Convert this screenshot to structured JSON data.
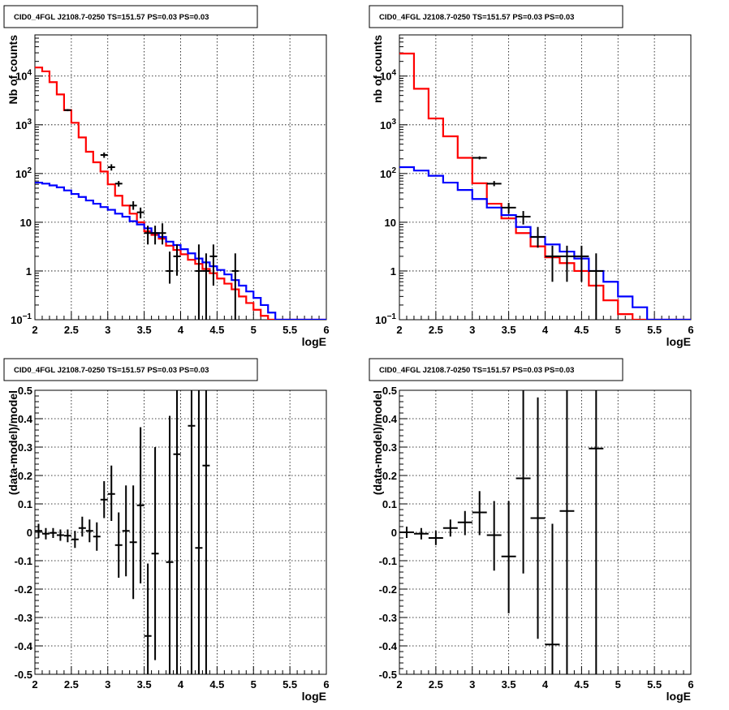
{
  "chart_data": [
    {
      "type": "line",
      "subtype": "histogram",
      "title": "CID0_4FGL J2108.7-0250 TS=151.57 PS=0.03 PS=0.03",
      "xlabel": "logE",
      "ylabel": "Nb of counts",
      "xlim": [
        2,
        6
      ],
      "ylim": [
        0.1,
        70000
      ],
      "yscale": "log",
      "grid": true,
      "xticks": [
        "2",
        "2.5",
        "3",
        "3.5",
        "4",
        "4.5",
        "5",
        "5.5",
        "6"
      ],
      "yticks": [
        "10^-1",
        "1",
        "10",
        "10^2",
        "10^3",
        "10^4"
      ],
      "bin_width": 0.1,
      "series": [
        {
          "color": "#ff0000",
          "step_edges": [
            2.0,
            2.1,
            2.2,
            2.3,
            2.4,
            2.5,
            2.6,
            2.7,
            2.8,
            2.9,
            3.0,
            3.1,
            3.2,
            3.3,
            3.4,
            3.5,
            3.6,
            3.7,
            3.8,
            3.9,
            4.0,
            4.1,
            4.2,
            4.3,
            4.4,
            4.5,
            4.6,
            4.7,
            4.8,
            4.9,
            5.0,
            5.1,
            5.2,
            5.3,
            5.4,
            5.5,
            5.6,
            5.7,
            5.8,
            5.9,
            6.0
          ],
          "values": [
            15000,
            12500,
            7500,
            4200,
            2000,
            1100,
            550,
            280,
            170,
            110,
            60,
            35,
            22,
            15,
            10,
            6.5,
            5.5,
            4.6,
            3.3,
            2.7,
            2.2,
            1.7,
            1.4,
            1.1,
            0.9,
            0.7,
            0.55,
            0.42,
            0.3,
            0.22,
            0.16,
            0.12,
            0.1,
            0.1,
            0.1,
            0.1,
            0.1,
            0.1,
            0.1,
            0.1
          ]
        },
        {
          "color": "#0000ff",
          "step_edges": [
            2.0,
            2.1,
            2.2,
            2.3,
            2.4,
            2.5,
            2.6,
            2.7,
            2.8,
            2.9,
            3.0,
            3.1,
            3.2,
            3.3,
            3.4,
            3.5,
            3.6,
            3.7,
            3.8,
            3.9,
            4.0,
            4.1,
            4.2,
            4.3,
            4.4,
            4.5,
            4.6,
            4.7,
            4.8,
            4.9,
            5.0,
            5.1,
            5.2,
            5.3,
            5.4,
            5.5,
            5.6,
            5.7,
            5.8,
            5.9,
            6.0
          ],
          "values": [
            65,
            62,
            57,
            52,
            45,
            38,
            33,
            28,
            24,
            20.5,
            18,
            15,
            13,
            10.5,
            9,
            7.5,
            6,
            5,
            4,
            3.4,
            2.8,
            2.3,
            1.8,
            1.5,
            1.25,
            1.05,
            0.85,
            0.65,
            0.5,
            0.38,
            0.28,
            0.2,
            0.14,
            0.1,
            0.1,
            0.1,
            0.1,
            0.1,
            0.1,
            0.1
          ]
        },
        {
          "color": "#000000",
          "points": [
            {
              "x": 2.45,
              "y": 2000,
              "lo": 1900,
              "hi": 2100
            },
            {
              "x": 2.95,
              "y": 240,
              "lo": 210,
              "hi": 270
            },
            {
              "x": 3.05,
              "y": 135,
              "lo": 115,
              "hi": 155
            },
            {
              "x": 3.15,
              "y": 62,
              "lo": 54,
              "hi": 70
            },
            {
              "x": 3.35,
              "y": 22,
              "lo": 18,
              "hi": 27
            },
            {
              "x": 3.45,
              "y": 16,
              "lo": 12,
              "hi": 20
            },
            {
              "x": 3.55,
              "y": 6,
              "lo": 3.5,
              "hi": 8.5
            },
            {
              "x": 3.65,
              "y": 6,
              "lo": 3.5,
              "hi": 8.5
            },
            {
              "x": 3.75,
              "y": 6,
              "lo": 3.5,
              "hi": 9.5
            },
            {
              "x": 3.85,
              "y": 1,
              "lo": 0.55,
              "hi": 2.5
            },
            {
              "x": 3.95,
              "y": 2,
              "lo": 0.8,
              "hi": 3.5
            },
            {
              "x": 4.25,
              "y": 1,
              "lo": 0.1,
              "hi": 3.5
            },
            {
              "x": 4.35,
              "y": 1,
              "lo": 0.1,
              "hi": 2.3
            },
            {
              "x": 4.45,
              "y": 2,
              "lo": 0.5,
              "hi": 3.5
            },
            {
              "x": 4.75,
              "y": 1,
              "lo": 0.1,
              "hi": 2.3
            }
          ]
        }
      ]
    },
    {
      "type": "line",
      "subtype": "histogram",
      "title": "CID0_4FGL J2108.7-0250 TS=151.57 PS=0.03 PS=0.03",
      "xlabel": "logE",
      "ylabel": "nb of counts",
      "xlim": [
        2,
        6
      ],
      "ylim": [
        0.1,
        70000
      ],
      "yscale": "log",
      "grid": true,
      "xticks": [
        "2",
        "2.5",
        "3",
        "3.5",
        "4",
        "4.5",
        "5",
        "5.5",
        "6"
      ],
      "yticks": [
        "10^-1",
        "1",
        "10",
        "10^2",
        "10^3",
        "10^4"
      ],
      "bin_width": 0.2,
      "series": [
        {
          "color": "#ff0000",
          "step_edges": [
            2.0,
            2.2,
            2.4,
            2.6,
            2.8,
            3.0,
            3.2,
            3.4,
            3.6,
            3.8,
            4.0,
            4.2,
            4.4,
            4.6,
            4.8,
            5.0,
            5.2,
            5.4,
            5.6,
            5.8,
            6.0
          ],
          "values": [
            29000,
            5500,
            1350,
            580,
            210,
            63,
            24,
            12,
            6,
            3.2,
            1.9,
            1.45,
            1.0,
            0.5,
            0.25,
            0.13,
            0.1,
            0.1,
            0.1,
            0.1
          ]
        },
        {
          "color": "#0000ff",
          "step_edges": [
            2.0,
            2.2,
            2.4,
            2.6,
            2.8,
            3.0,
            3.2,
            3.4,
            3.6,
            3.8,
            4.0,
            4.2,
            4.4,
            4.6,
            4.8,
            5.0,
            5.2,
            5.4,
            5.6,
            5.8,
            6.0
          ],
          "values": [
            135,
            115,
            90,
            65,
            46,
            30,
            20,
            14,
            8,
            5,
            3.5,
            2.5,
            1.8,
            1.0,
            0.6,
            0.3,
            0.18,
            0.1,
            0.1,
            0.1
          ]
        },
        {
          "color": "#000000",
          "points": [
            {
              "x": 3.1,
              "y": 210,
              "lo": 195,
              "hi": 225
            },
            {
              "x": 3.3,
              "y": 62,
              "lo": 55,
              "hi": 70
            },
            {
              "x": 3.5,
              "y": 20,
              "lo": 15,
              "hi": 25
            },
            {
              "x": 3.7,
              "y": 13,
              "lo": 9,
              "hi": 17
            },
            {
              "x": 3.9,
              "y": 5,
              "lo": 3,
              "hi": 8
            },
            {
              "x": 4.1,
              "y": 2,
              "lo": 0.6,
              "hi": 3.3
            },
            {
              "x": 4.3,
              "y": 2,
              "lo": 0.6,
              "hi": 3.3
            },
            {
              "x": 4.5,
              "y": 2,
              "lo": 0.6,
              "hi": 3.3
            },
            {
              "x": 4.7,
              "y": 1,
              "lo": 0.1,
              "hi": 2.3
            }
          ]
        }
      ]
    },
    {
      "type": "scatter",
      "subtype": "errorbar",
      "title": "CID0_4FGL J2108.7-0250 TS=151.57 PS=0.03 PS=0.03",
      "xlabel": "logE",
      "ylabel": "(data-model)/model",
      "xlim": [
        2,
        6
      ],
      "ylim": [
        -0.5,
        0.5
      ],
      "grid": true,
      "bin_width": 0.1,
      "xticks": [
        "2",
        "2.5",
        "3",
        "3.5",
        "4",
        "4.5",
        "5",
        "5.5",
        "6"
      ],
      "yticks": [
        "-0.5",
        "-0.4",
        "-0.3",
        "-0.2",
        "-0.1",
        "0",
        "0.1",
        "0.2",
        "0.3",
        "0.4",
        "0.5"
      ],
      "points": [
        {
          "x": 2.05,
          "y": 0.005,
          "lo": -0.02,
          "hi": 0.03
        },
        {
          "x": 2.15,
          "y": -0.005,
          "lo": -0.025,
          "hi": 0.015
        },
        {
          "x": 2.25,
          "y": -0.002,
          "lo": -0.02,
          "hi": 0.015
        },
        {
          "x": 2.35,
          "y": -0.01,
          "lo": -0.03,
          "hi": 0.01
        },
        {
          "x": 2.45,
          "y": -0.012,
          "lo": -0.035,
          "hi": 0.01
        },
        {
          "x": 2.55,
          "y": -0.025,
          "lo": -0.055,
          "hi": 0.005
        },
        {
          "x": 2.65,
          "y": 0.015,
          "lo": -0.015,
          "hi": 0.055
        },
        {
          "x": 2.75,
          "y": 0.005,
          "lo": -0.035,
          "hi": 0.045
        },
        {
          "x": 2.85,
          "y": -0.015,
          "lo": -0.065,
          "hi": 0.035
        },
        {
          "x": 2.95,
          "y": 0.115,
          "lo": 0.05,
          "hi": 0.18
        },
        {
          "x": 3.05,
          "y": 0.135,
          "lo": 0.04,
          "hi": 0.235
        },
        {
          "x": 3.15,
          "y": -0.045,
          "lo": -0.16,
          "hi": 0.07
        },
        {
          "x": 3.25,
          "y": 0.005,
          "lo": -0.155,
          "hi": 0.165
        },
        {
          "x": 3.35,
          "y": -0.035,
          "lo": -0.235,
          "hi": 0.165
        },
        {
          "x": 3.45,
          "y": 0.095,
          "lo": -0.18,
          "hi": 0.37
        },
        {
          "x": 3.55,
          "y": -0.365,
          "lo": -0.5,
          "hi": -0.11
        },
        {
          "x": 3.65,
          "y": -0.075,
          "lo": -0.45,
          "hi": 0.3
        },
        {
          "x": 3.85,
          "y": -0.105,
          "lo": -0.5,
          "hi": 0.41
        },
        {
          "x": 3.95,
          "y": 0.275,
          "lo": -0.5,
          "hi": 0.5
        },
        {
          "x": 4.15,
          "y": 0.375,
          "lo": -0.5,
          "hi": 0.5
        },
        {
          "x": 4.25,
          "y": -0.055,
          "lo": -0.5,
          "hi": 0.5
        },
        {
          "x": 4.35,
          "y": 0.235,
          "lo": -0.5,
          "hi": 0.5
        }
      ]
    },
    {
      "type": "scatter",
      "subtype": "errorbar",
      "title": "CID0_4FGL J2108.7-0250 TS=151.57 PS=0.03 PS=0.03",
      "xlabel": "logE",
      "ylabel": "(data-model)/model",
      "xlim": [
        2,
        6
      ],
      "ylim": [
        -0.5,
        0.5
      ],
      "grid": true,
      "bin_width": 0.2,
      "xticks": [
        "2",
        "2.5",
        "3",
        "3.5",
        "4",
        "4.5",
        "5",
        "5.5",
        "6"
      ],
      "yticks": [
        "-0.5",
        "-0.4",
        "-0.3",
        "-0.2",
        "-0.1",
        "0",
        "0.1",
        "0.2",
        "0.3",
        "0.4",
        "0.5"
      ],
      "points": [
        {
          "x": 2.1,
          "y": 0.0,
          "lo": -0.02,
          "hi": 0.02
        },
        {
          "x": 2.3,
          "y": -0.005,
          "lo": -0.025,
          "hi": 0.015
        },
        {
          "x": 2.5,
          "y": -0.02,
          "lo": -0.045,
          "hi": 0.005
        },
        {
          "x": 2.7,
          "y": 0.015,
          "lo": -0.015,
          "hi": 0.045
        },
        {
          "x": 2.9,
          "y": 0.035,
          "lo": -0.01,
          "hi": 0.075
        },
        {
          "x": 3.1,
          "y": 0.07,
          "lo": -0.01,
          "hi": 0.145
        },
        {
          "x": 3.3,
          "y": -0.01,
          "lo": -0.135,
          "hi": 0.11
        },
        {
          "x": 3.5,
          "y": -0.085,
          "lo": -0.285,
          "hi": 0.11
        },
        {
          "x": 3.7,
          "y": 0.19,
          "lo": -0.145,
          "hi": 0.5
        },
        {
          "x": 3.9,
          "y": 0.05,
          "lo": -0.375,
          "hi": 0.475
        },
        {
          "x": 4.1,
          "y": -0.395,
          "lo": -0.5,
          "hi": 0.03
        },
        {
          "x": 4.3,
          "y": 0.075,
          "lo": -0.5,
          "hi": 0.5
        },
        {
          "x": 4.7,
          "y": 0.295,
          "lo": -0.5,
          "hi": 0.5
        }
      ]
    }
  ]
}
